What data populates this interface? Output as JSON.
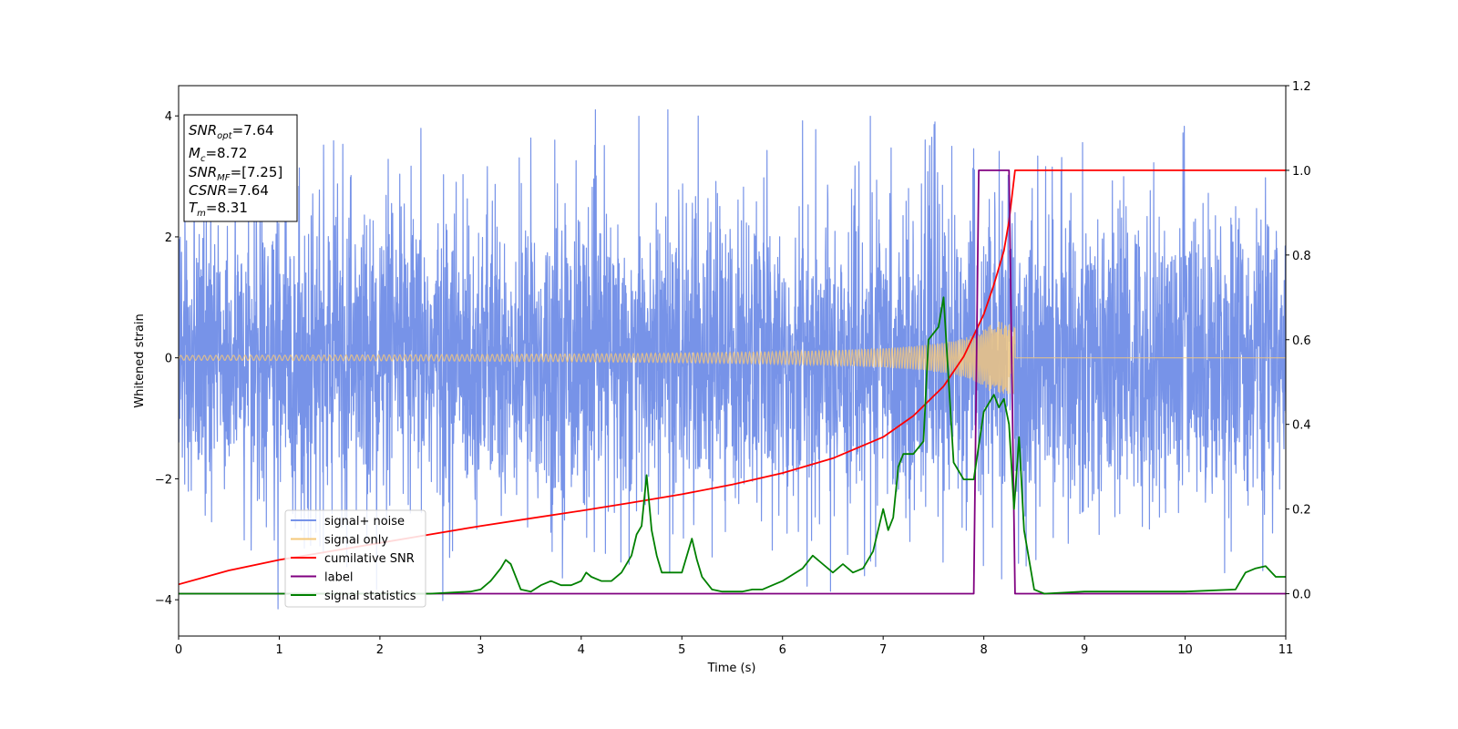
{
  "chart_data": {
    "type": "line",
    "title": "",
    "xlabel": "Time (s)",
    "ylabel_left": "Whitened strain",
    "ylabel_right": "",
    "xlim": [
      0,
      11
    ],
    "ylim_left": [
      -4.6,
      4.5
    ],
    "ylim_right": [
      -0.1,
      1.2
    ],
    "x_ticks": [
      0,
      1,
      2,
      3,
      4,
      5,
      6,
      7,
      8,
      9,
      10,
      11
    ],
    "y_left_ticks": [
      -4,
      -2,
      0,
      2,
      4
    ],
    "y_right_ticks": [
      0.0,
      0.2,
      0.4,
      0.6,
      0.8,
      1.0,
      1.2
    ],
    "grid": false,
    "legend_position": "lower-left",
    "annotation": {
      "snr_opt": "=7.64",
      "mc": "=8.72",
      "snr_mf": "=[7.25]",
      "csnr": "=7.64",
      "tm": "=8.31"
    },
    "series": [
      {
        "name": "signal+ noise",
        "axis": "left",
        "color": "#7793e8",
        "kind": "noise",
        "envelope_typical": 1.55,
        "spike_max": 4.1,
        "spike_min": -4.15,
        "x_range": [
          0,
          11
        ]
      },
      {
        "name": "signal only",
        "axis": "left",
        "color": "#f5c87a",
        "kind": "chirp",
        "amplitude_start": 0.04,
        "amplitude_peak": 0.6,
        "merger_time": 8.31,
        "x_range": [
          0,
          11
        ]
      },
      {
        "name": "cumilative SNR",
        "axis": "right",
        "color": "#ff0000",
        "x": [
          0,
          0.5,
          1,
          1.5,
          2,
          2.5,
          3,
          3.5,
          4,
          4.5,
          5,
          5.5,
          6,
          6.5,
          7,
          7.3,
          7.6,
          7.8,
          8.0,
          8.1,
          8.2,
          8.25,
          8.31,
          9,
          10,
          11
        ],
        "y": [
          0.022,
          0.055,
          0.08,
          0.1,
          0.12,
          0.14,
          0.16,
          0.178,
          0.196,
          0.215,
          0.235,
          0.258,
          0.285,
          0.32,
          0.37,
          0.42,
          0.49,
          0.56,
          0.66,
          0.73,
          0.81,
          0.88,
          1.0,
          1.0,
          1.0,
          1.0
        ]
      },
      {
        "name": "label",
        "axis": "right",
        "color": "#800080",
        "x": [
          0,
          7.9,
          7.95,
          8.25,
          8.31,
          11
        ],
        "y": [
          0.0,
          0.0,
          1.0,
          1.0,
          0.0,
          0.0
        ]
      },
      {
        "name": "signal statistics",
        "axis": "right",
        "color": "#008000",
        "x": [
          0,
          1,
          2,
          2.5,
          2.9,
          3.0,
          3.1,
          3.2,
          3.25,
          3.3,
          3.4,
          3.5,
          3.6,
          3.7,
          3.8,
          3.9,
          4.0,
          4.05,
          4.1,
          4.2,
          4.3,
          4.4,
          4.5,
          4.55,
          4.6,
          4.65,
          4.7,
          4.75,
          4.8,
          4.9,
          5.0,
          5.1,
          5.15,
          5.2,
          5.3,
          5.4,
          5.5,
          5.6,
          5.7,
          5.8,
          5.9,
          6.0,
          6.1,
          6.2,
          6.3,
          6.4,
          6.5,
          6.6,
          6.7,
          6.8,
          6.9,
          7.0,
          7.05,
          7.1,
          7.15,
          7.2,
          7.3,
          7.4,
          7.45,
          7.55,
          7.6,
          7.7,
          7.8,
          7.9,
          8.0,
          8.1,
          8.15,
          8.2,
          8.25,
          8.3,
          8.35,
          8.4,
          8.5,
          8.6,
          9,
          10,
          10.5,
          10.6,
          10.7,
          10.8,
          10.9,
          11
        ],
        "y": [
          0.0,
          0.0,
          0.0,
          0.0,
          0.005,
          0.01,
          0.03,
          0.06,
          0.08,
          0.07,
          0.01,
          0.005,
          0.02,
          0.03,
          0.02,
          0.02,
          0.03,
          0.05,
          0.04,
          0.03,
          0.03,
          0.05,
          0.09,
          0.14,
          0.16,
          0.28,
          0.15,
          0.09,
          0.05,
          0.05,
          0.05,
          0.13,
          0.08,
          0.04,
          0.01,
          0.005,
          0.005,
          0.005,
          0.01,
          0.01,
          0.02,
          0.03,
          0.045,
          0.06,
          0.09,
          0.07,
          0.05,
          0.07,
          0.05,
          0.06,
          0.1,
          0.2,
          0.15,
          0.18,
          0.3,
          0.33,
          0.33,
          0.36,
          0.6,
          0.63,
          0.7,
          0.31,
          0.27,
          0.27,
          0.43,
          0.47,
          0.44,
          0.46,
          0.4,
          0.2,
          0.37,
          0.15,
          0.01,
          0.0,
          0.005,
          0.005,
          0.01,
          0.05,
          0.06,
          0.065,
          0.04,
          0.04
        ]
      }
    ]
  }
}
